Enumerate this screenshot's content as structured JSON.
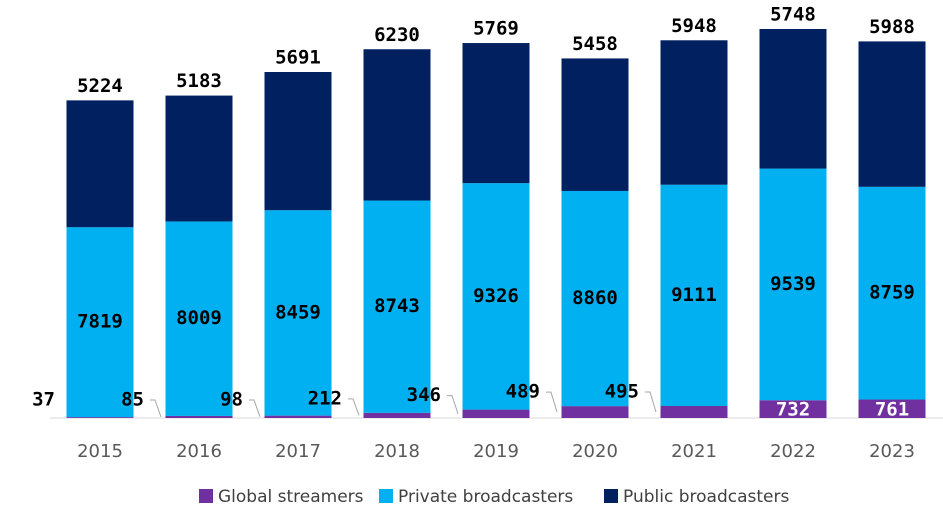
{
  "chart_data": {
    "type": "stacked_bar",
    "categories": [
      "2015",
      "2016",
      "2017",
      "2018",
      "2019",
      "2020",
      "2021",
      "2022",
      "2023"
    ],
    "series": [
      {
        "name": "Global streamers",
        "color": "#7030a0",
        "values": [
          37,
          85,
          98,
          212,
          346,
          489,
          495,
          732,
          761
        ]
      },
      {
        "name": "Private broadcasters",
        "color": "#00b0f0",
        "values": [
          7819,
          8009,
          8459,
          8743,
          9326,
          8860,
          9111,
          9539,
          8759
        ]
      },
      {
        "name": "Public broadcasters",
        "color": "#002060",
        "values": [
          5224,
          5183,
          5691,
          6230,
          5769,
          5458,
          5948,
          5748,
          5988
        ]
      }
    ]
  }
}
